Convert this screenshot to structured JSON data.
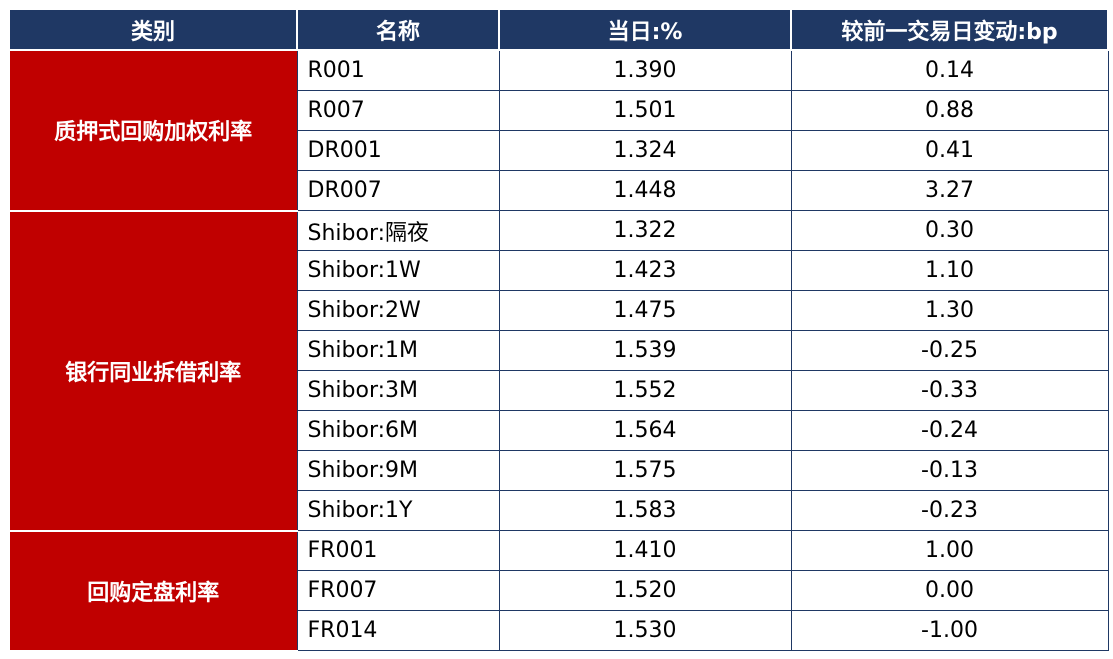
{
  "colors": {
    "header_bg": "#1f3864",
    "header_text": "#ffffff",
    "category_bg": "#c00000",
    "category_text": "#ffffff",
    "cell_text": "#000000",
    "border": "#1f3864"
  },
  "table": {
    "headers": [
      "类别",
      "名称",
      "当日:%",
      "较前一交易日变动:bp"
    ],
    "groups": [
      {
        "category": "质押式回购加权利率",
        "rows": [
          {
            "name": "R001",
            "today": "1.390",
            "change": "0.14"
          },
          {
            "name": "R007",
            "today": "1.501",
            "change": "0.88"
          },
          {
            "name": "DR001",
            "today": "1.324",
            "change": "0.41"
          },
          {
            "name": "DR007",
            "today": "1.448",
            "change": "3.27"
          }
        ]
      },
      {
        "category": "银行同业拆借利率",
        "rows": [
          {
            "name": "Shibor:隔夜",
            "today": "1.322",
            "change": "0.30"
          },
          {
            "name": "Shibor:1W",
            "today": "1.423",
            "change": "1.10"
          },
          {
            "name": "Shibor:2W",
            "today": "1.475",
            "change": "1.30"
          },
          {
            "name": "Shibor:1M",
            "today": "1.539",
            "change": "-0.25"
          },
          {
            "name": "Shibor:3M",
            "today": "1.552",
            "change": "-0.33"
          },
          {
            "name": "Shibor:6M",
            "today": "1.564",
            "change": "-0.24"
          },
          {
            "name": "Shibor:9M",
            "today": "1.575",
            "change": "-0.13"
          },
          {
            "name": "Shibor:1Y",
            "today": "1.583",
            "change": "-0.23"
          }
        ]
      },
      {
        "category": "回购定盘利率",
        "rows": [
          {
            "name": "FR001",
            "today": "1.410",
            "change": "1.00"
          },
          {
            "name": "FR007",
            "today": "1.520",
            "change": "0.00"
          },
          {
            "name": "FR014",
            "today": "1.530",
            "change": "-1.00"
          }
        ]
      }
    ]
  },
  "chart_data": {
    "type": "table",
    "title": "",
    "columns": [
      "类别",
      "名称",
      "当日:%",
      "较前一交易日变动:bp"
    ],
    "rows": [
      [
        "质押式回购加权利率",
        "R001",
        1.39,
        0.14
      ],
      [
        "质押式回购加权利率",
        "R007",
        1.501,
        0.88
      ],
      [
        "质押式回购加权利率",
        "DR001",
        1.324,
        0.41
      ],
      [
        "质押式回购加权利率",
        "DR007",
        1.448,
        3.27
      ],
      [
        "银行同业拆借利率",
        "Shibor:隔夜",
        1.322,
        0.3
      ],
      [
        "银行同业拆借利率",
        "Shibor:1W",
        1.423,
        1.1
      ],
      [
        "银行同业拆借利率",
        "Shibor:2W",
        1.475,
        1.3
      ],
      [
        "银行同业拆借利率",
        "Shibor:1M",
        1.539,
        -0.25
      ],
      [
        "银行同业拆借利率",
        "Shibor:3M",
        1.552,
        -0.33
      ],
      [
        "银行同业拆借利率",
        "Shibor:6M",
        1.564,
        -0.24
      ],
      [
        "银行同业拆借利率",
        "Shibor:9M",
        1.575,
        -0.13
      ],
      [
        "银行同业拆借利率",
        "Shibor:1Y",
        1.583,
        -0.23
      ],
      [
        "回购定盘利率",
        "FR001",
        1.41,
        1.0
      ],
      [
        "回购定盘利率",
        "FR007",
        1.52,
        0.0
      ],
      [
        "回购定盘利率",
        "FR014",
        1.53,
        -1.0
      ]
    ]
  }
}
